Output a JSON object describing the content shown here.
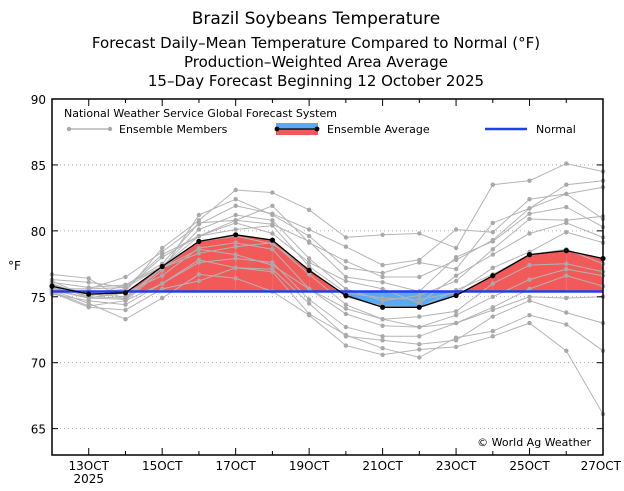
{
  "chart_data": {
    "type": "line",
    "title": "Brazil Soybeans Temperature",
    "subtitle_lines": [
      "Forecast Daily–Mean Temperature Compared to Normal (°F)",
      "Production–Weighted Area Average",
      "15–Day Forecast Beginning 12 October 2025"
    ],
    "ylabel": "°F",
    "ylim": [
      63,
      90
    ],
    "yticks": [
      65,
      70,
      75,
      80,
      85,
      90
    ],
    "xlim": [
      12,
      27
    ],
    "xticks": [
      {
        "day": 13,
        "label": "13OCT"
      },
      {
        "day": 15,
        "label": "15OCT"
      },
      {
        "day": 17,
        "label": "17OCT"
      },
      {
        "day": 19,
        "label": "19OCT"
      },
      {
        "day": 21,
        "label": "21OCT"
      },
      {
        "day": 23,
        "label": "23OCT"
      },
      {
        "day": 25,
        "label": "25OCT"
      },
      {
        "day": 27,
        "label": "27OCT"
      }
    ],
    "year_label": "2025",
    "legend": {
      "header": "National Weather Service Global Forecast System",
      "members_label": "Ensemble Members",
      "average_label": "Ensemble Average",
      "normal_label": "Normal"
    },
    "credit": "© World Ag Weather",
    "days": [
      12,
      13,
      14,
      15,
      16,
      17,
      18,
      19,
      20,
      21,
      22,
      23,
      24,
      25,
      26,
      27
    ],
    "normal": [
      75.4,
      75.4,
      75.4,
      75.4,
      75.4,
      75.4,
      75.4,
      75.4,
      75.4,
      75.4,
      75.4,
      75.4,
      75.4,
      75.4,
      75.4,
      75.4
    ],
    "ensemble_average": [
      75.8,
      75.2,
      75.3,
      77.3,
      79.2,
      79.7,
      79.3,
      77.0,
      75.1,
      74.2,
      74.2,
      75.1,
      76.6,
      78.2,
      78.5,
      77.9
    ],
    "ensemble_spread": [
      [
        0.2,
        -0.3,
        0.1,
        1.4,
        1.6,
        3.4,
        3.6,
        4.6,
        4.4,
        5.5,
        5.6,
        3.6,
        6.9,
        5.6,
        6.6,
        6.6
      ],
      [
        -0.2,
        0.4,
        1.2,
        1.1,
        1.3,
        2.2,
        2.0,
        3.1,
        3.7,
        3.2,
        3.6,
        5.0,
        3.3,
        4.2,
        4.3,
        5.4
      ],
      [
        0.9,
        1.2,
        -0.6,
        -0.3,
        2.0,
        2.7,
        1.9,
        2.6,
        2.1,
        2.6,
        3.4,
        2.0,
        4.0,
        3.5,
        5.0,
        5.9
      ],
      [
        0.5,
        0.9,
        0.4,
        0.0,
        0.4,
        1.1,
        2.6,
        2.1,
        2.6,
        2.3,
        2.3,
        2.7,
        2.7,
        3.5,
        4.3,
        3.0
      ],
      [
        0.4,
        -0.2,
        0.6,
        0.2,
        1.4,
        1.1,
        1.2,
        2.2,
        1.4,
        1.9,
        1.2,
        2.9,
        2.6,
        3.1,
        3.3,
        2.4
      ],
      [
        0.3,
        0.5,
        0.6,
        0.0,
        0.9,
        1.5,
        1.5,
        0.9,
        0.5,
        0.5,
        0.9,
        1.1,
        2.0,
        2.7,
        2.3,
        3.2
      ],
      [
        -0.2,
        0.4,
        0.4,
        0.9,
        0.4,
        0.9,
        0.5,
        0.6,
        1.1,
        1.4,
        0.3,
        1.5,
        1.6,
        1.6,
        2.1,
        1.6
      ],
      [
        0.1,
        0.0,
        0.3,
        0.7,
        0.4,
        0.4,
        1.1,
        0.3,
        0.2,
        0.7,
        0.6,
        0.2,
        0.6,
        0.2,
        1.4,
        1.2
      ],
      [
        -0.1,
        0.0,
        -0.3,
        -0.1,
        0.0,
        -0.1,
        -0.3,
        0.1,
        -0.1,
        0.1,
        0.0,
        0.4,
        0.1,
        0.0,
        0.1,
        -0.4
      ],
      [
        0.2,
        -0.2,
        -0.4,
        -0.1,
        -0.9,
        -0.9,
        -0.2,
        -0.3,
        -0.7,
        -0.9,
        -0.7,
        -1.2,
        -0.6,
        -0.8,
        -1.0,
        -1.0
      ],
      [
        -0.3,
        -0.3,
        0.0,
        -0.7,
        -0.5,
        -0.6,
        -0.7,
        -1.4,
        -1.0,
        -0.9,
        -1.5,
        -1.5,
        -1.6,
        -1.9,
        -1.4,
        -1.3
      ],
      [
        -0.2,
        -0.3,
        -0.5,
        -0.1,
        -0.6,
        -1.5,
        -1.9,
        -1.4,
        -1.4,
        -1.4,
        -1.5,
        -2.1,
        -2.4,
        -2.6,
        -1.9,
        -2.1
      ],
      [
        -0.6,
        -0.5,
        -0.9,
        -1.3,
        -1.6,
        -1.8,
        -1.7,
        -2.2,
        -2.4,
        -2.2,
        -2.2,
        -2.1,
        -2.6,
        -3.2,
        -3.6,
        -2.9
      ],
      [
        -0.4,
        -0.9,
        -0.6,
        -1.3,
        -1.4,
        -2.5,
        -2.2,
        -2.5,
        -3.1,
        -2.5,
        -2.8,
        -3.4,
        -3.1,
        -3.5,
        -4.7,
        -4.9
      ],
      [
        -0.5,
        -1.0,
        -1.3,
        -1.7,
        -3.0,
        -2.5,
        -2.4,
        -3.3,
        -3.0,
        -3.1,
        -3.8,
        -3.2,
        -4.2,
        -4.6,
        -5.6,
        -7.0
      ],
      [
        -0.3,
        -0.7,
        -2.0,
        -2.4,
        -2.5,
        -3.3,
        -3.9,
        -3.4,
        -3.8,
        -3.6,
        -3.2,
        -3.9,
        -4.6,
        -5.2,
        -7.6,
        -11.8
      ]
    ]
  }
}
